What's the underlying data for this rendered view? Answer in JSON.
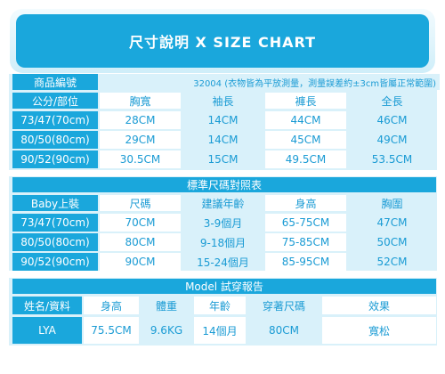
{
  "banner": {
    "title": "尺寸說明 X SIZE CHART"
  },
  "size_chart": {
    "label_header": "商品編號",
    "product_note": "32004 (衣物皆為平放測量，測量誤差約±3cm皆屬正常範圍)",
    "columns": [
      "公分/部位",
      "胸寬",
      "袖長",
      "褲長",
      "全長"
    ],
    "rows": [
      [
        "73/47(70cm)",
        "28CM",
        "14CM",
        "44CM",
        "46CM"
      ],
      [
        "80/50(80cm)",
        "29CM",
        "14CM",
        "45CM",
        "49CM"
      ],
      [
        "90/52(90cm)",
        "30.5CM",
        "15CM",
        "49.5CM",
        "53.5CM"
      ]
    ]
  },
  "reference_table": {
    "title": "標準尺碼對照表",
    "columns": [
      "Baby上裝",
      "尺碼",
      "建議年齡",
      "身高",
      "胸圍"
    ],
    "rows": [
      [
        "73/47(70cm)",
        "70CM",
        "3-9個月",
        "65-75CM",
        "47CM"
      ],
      [
        "80/50(80cm)",
        "80CM",
        "9-18個月",
        "75-85CM",
        "50CM"
      ],
      [
        "90/52(90cm)",
        "90CM",
        "15-24個月",
        "85-95CM",
        "52CM"
      ]
    ]
  },
  "model_report": {
    "title": "Model 試穿報告",
    "columns": [
      "姓名/資料",
      "身高",
      "體重",
      "年齡",
      "穿著尺碼",
      "效果"
    ],
    "row": [
      "LYA",
      "75.5CM",
      "9.6KG",
      "14個月",
      "80CM",
      "寬松"
    ]
  }
}
